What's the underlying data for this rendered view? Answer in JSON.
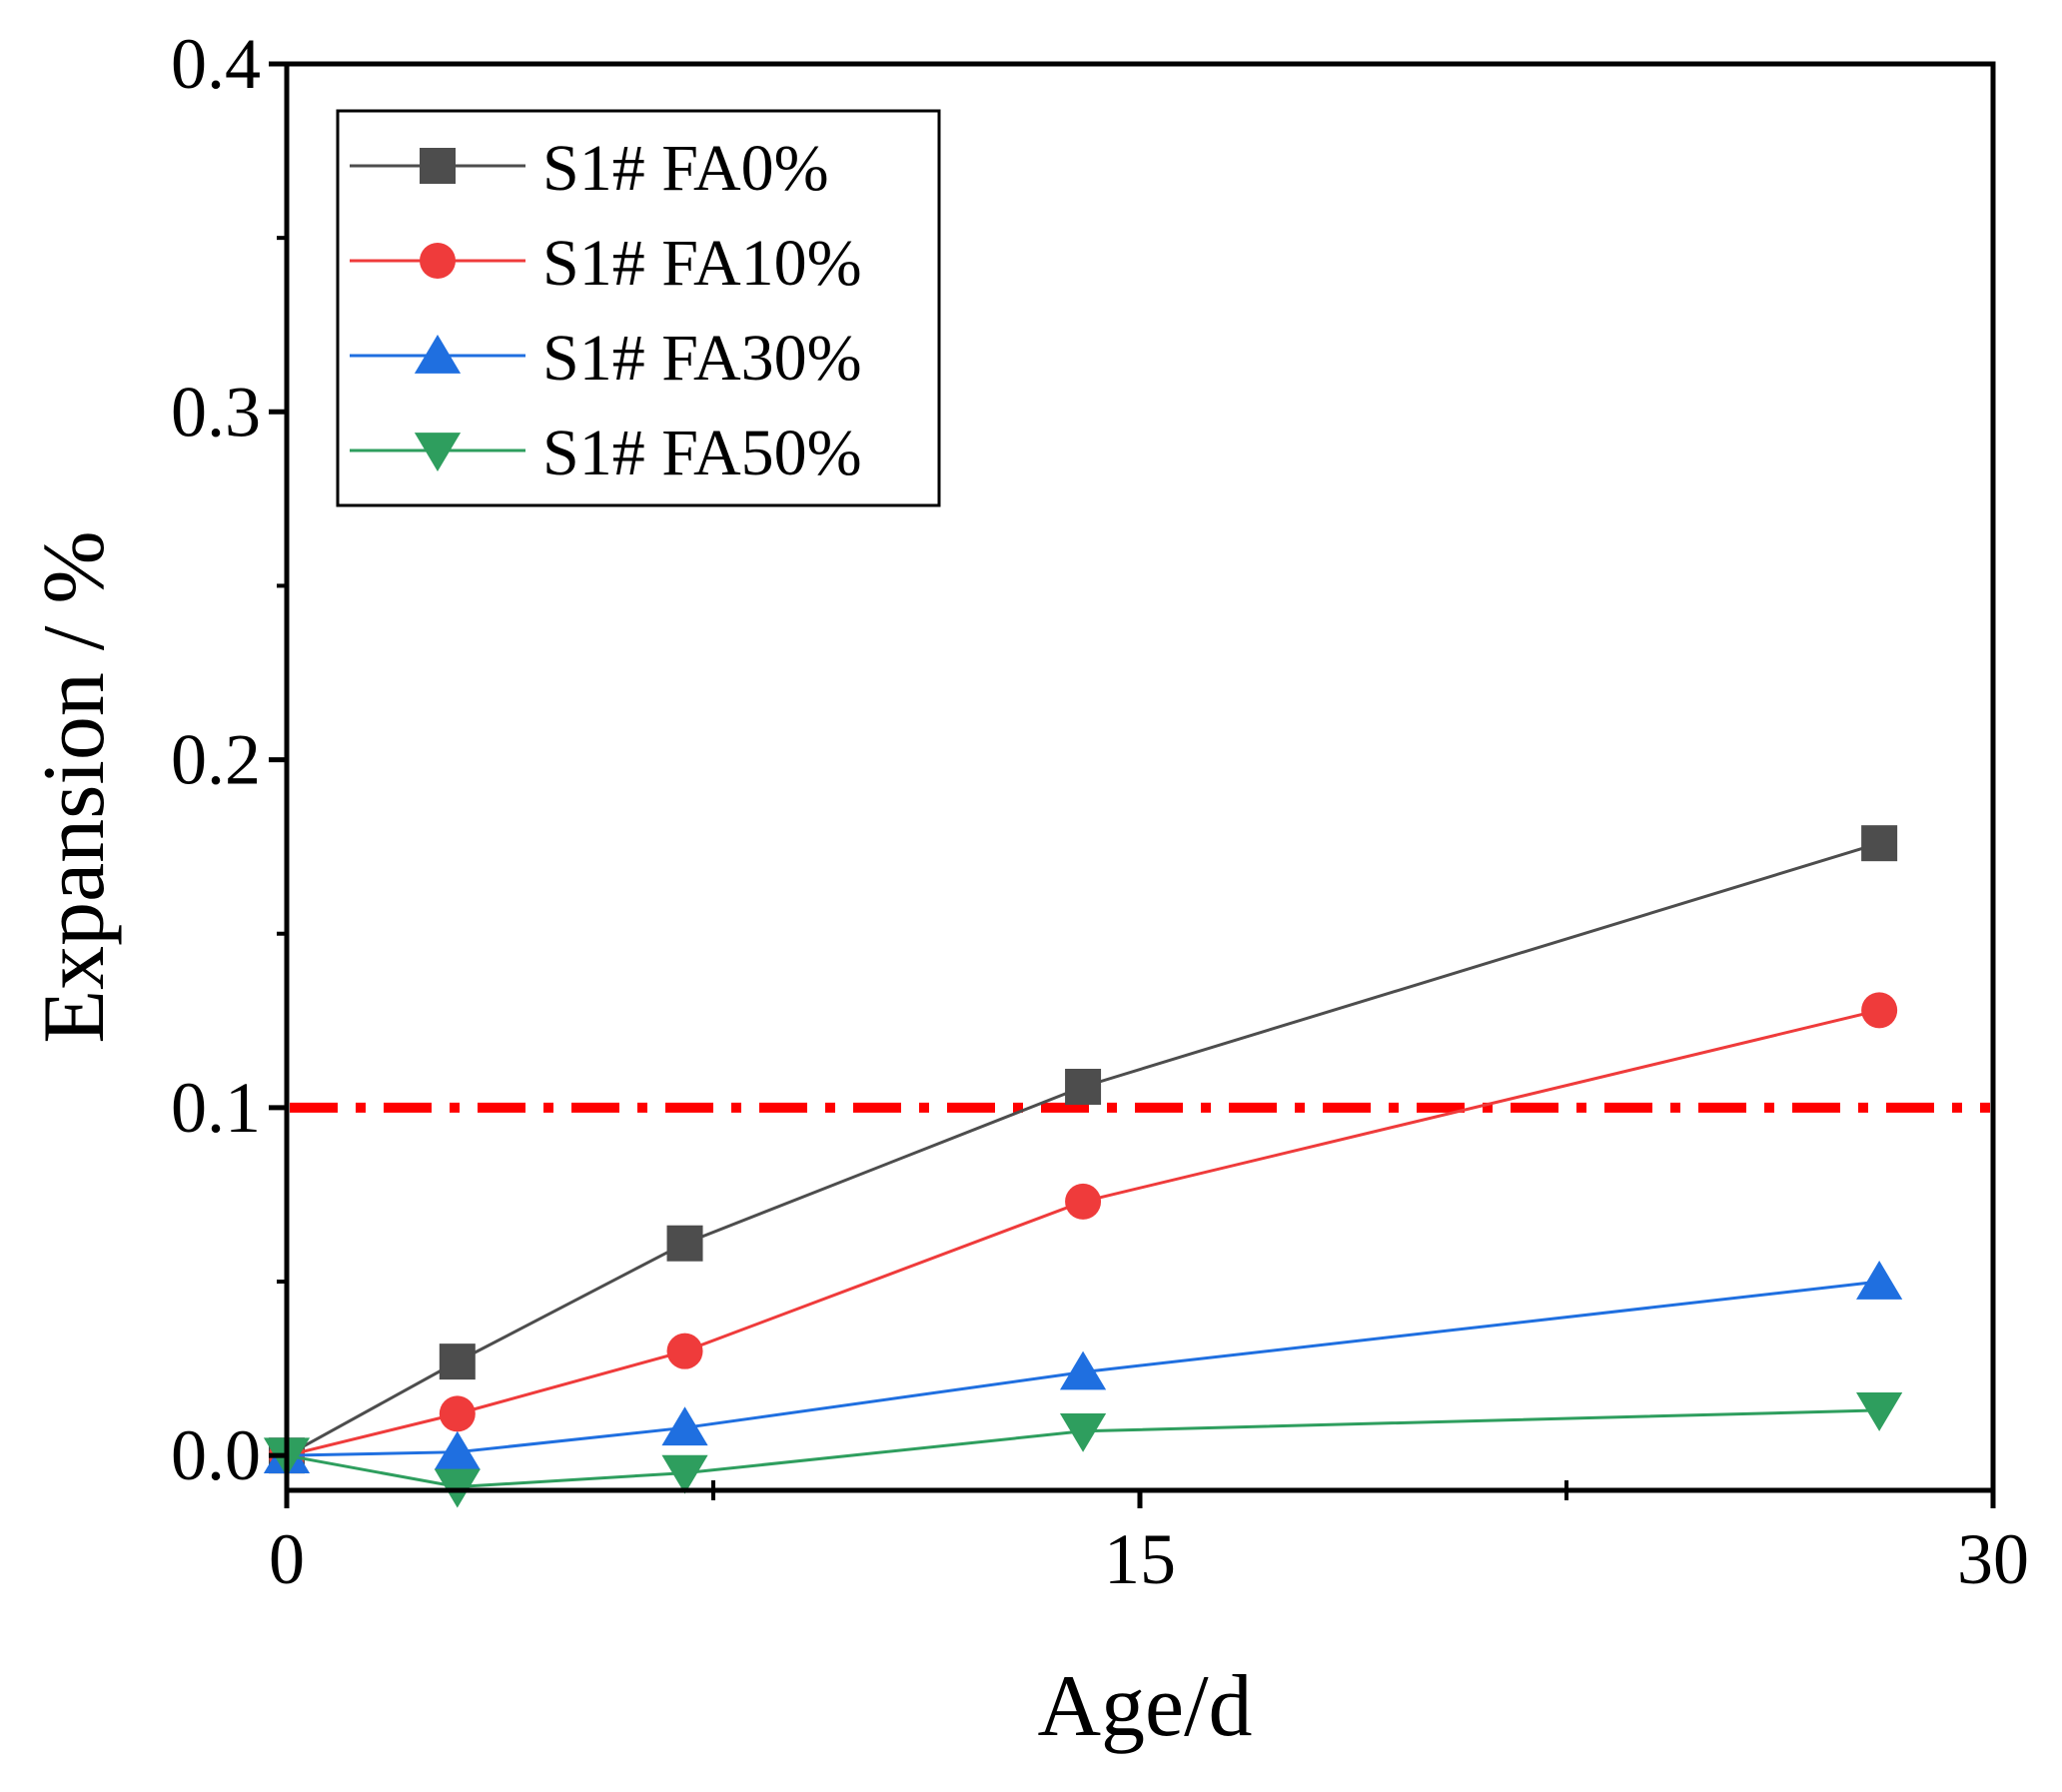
{
  "chart_data": {
    "type": "line",
    "xlabel": "Age/d",
    "ylabel": "Expansion / %",
    "xlim": [
      0,
      30
    ],
    "ylim": [
      -0.01,
      0.4
    ],
    "x_ticks": [
      0,
      15,
      30
    ],
    "y_ticks": [
      "0.0",
      "0.1",
      "0.2",
      "0.3",
      "0.4"
    ],
    "x_tick_labels": [
      "0",
      "15",
      "30"
    ],
    "y_tick_labels": [
      "0.0",
      "0.1",
      "0.2",
      "0.3",
      "0.4"
    ],
    "grid": false,
    "legend_position": "top-left",
    "reference_line": {
      "y": 0.1,
      "color": "#ff0000",
      "style": "dash-dot"
    },
    "x": [
      0,
      3,
      7,
      14,
      28
    ],
    "series": [
      {
        "name": "S1# FA0%",
        "marker": "square",
        "color": "#4d4d4d",
        "values": [
          0,
          0.027,
          0.061,
          0.106,
          0.176
        ]
      },
      {
        "name": "S1# FA10%",
        "marker": "circle",
        "color": "#ef3b3b",
        "values": [
          0,
          0.012,
          0.03,
          0.073,
          0.128
        ]
      },
      {
        "name": "S1# FA30%",
        "marker": "triangle-up",
        "color": "#1f6fe0",
        "values": [
          0,
          0.001,
          0.008,
          0.024,
          0.05
        ]
      },
      {
        "name": "S1# FA50%",
        "marker": "triangle-down",
        "color": "#2e9e5e",
        "values": [
          0,
          -0.009,
          -0.005,
          0.007,
          0.013
        ]
      }
    ]
  }
}
